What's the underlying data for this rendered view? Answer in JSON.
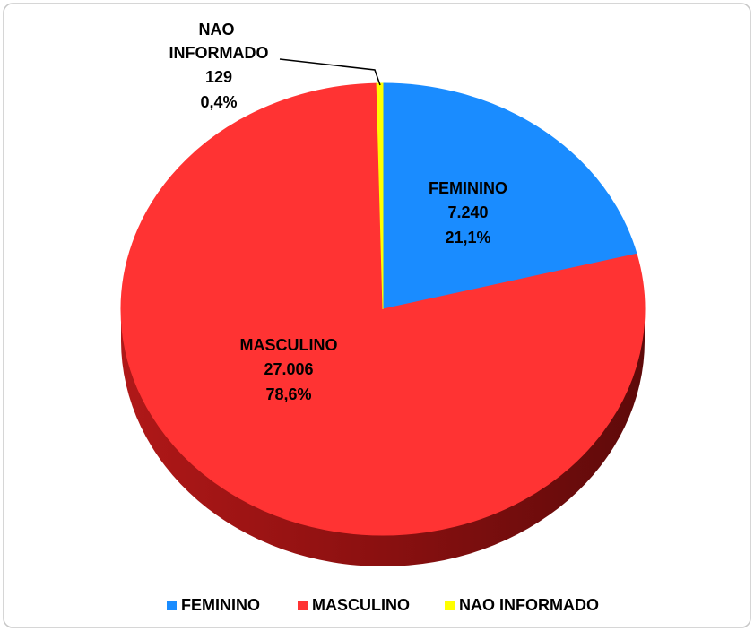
{
  "chart_data": {
    "type": "pie",
    "categories": [
      "FEMININO",
      "MASCULINO",
      "NAO INFORMADO"
    ],
    "values": [
      7240,
      27006,
      129
    ],
    "value_labels": [
      "7.240",
      "27.006",
      "129"
    ],
    "percentages": [
      21.1,
      78.6,
      0.4
    ],
    "percentage_labels": [
      "21,1%",
      "78,6%",
      "0,4%"
    ],
    "colors": [
      "#1a8cff",
      "#ff3333",
      "#ffff00"
    ],
    "legend": "bottom"
  }
}
